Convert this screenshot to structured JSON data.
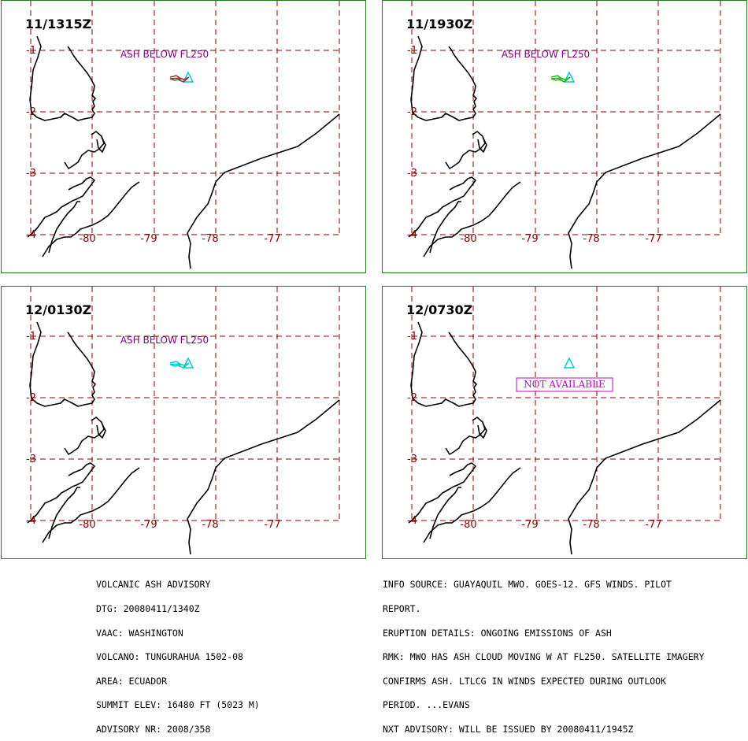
{
  "panels": [
    {
      "time": "11/1315Z",
      "label": "ASH BELOW FL250",
      "plume_color": "#8b3a3a",
      "na": false
    },
    {
      "time": "11/1930Z",
      "label": "ASH BELOW FL250",
      "plume_color": "#22bb22",
      "na": false
    },
    {
      "time": "12/0130Z",
      "label": "ASH BELOW FL250",
      "plume_color": "#00cccc",
      "na": false
    },
    {
      "time": "12/0730Z",
      "label": "",
      "plume_color": "",
      "na": true,
      "na_text": "NOT AVAILABLE"
    }
  ],
  "axis": {
    "lat_labels": [
      "-1",
      "-2",
      "-3",
      "-4"
    ],
    "lon_labels": [
      "-80",
      "-79",
      "-78",
      "-77"
    ]
  },
  "colors": {
    "frame": "#1e7d1e",
    "grid": "#8b0000",
    "coast": "#000000",
    "label": "#800080",
    "volcano": "#00cccc",
    "na_box": "#cc00cc"
  },
  "advisory_left": [
    "VOLCANIC ASH ADVISORY",
    "DTG: 20080411/1340Z",
    "VAAC: WASHINGTON",
    "VOLCANO: TUNGURAHUA 1502-08",
    "AREA: ECUADOR",
    "SUMMIT ELEV: 16480 FT (5023 M)",
    "ADVISORY NR: 2008/358"
  ],
  "advisory_right": [
    "INFO SOURCE: GUAYAQUIL MWO. GOES-12. GFS WINDS. PILOT",
    "REPORT.",
    "ERUPTION DETAILS: ONGOING EMISSIONS OF ASH",
    "RMK: MWO HAS ASH CLOUD MOVING W AT FL250. SATELLITE IMAGERY",
    "CONFIRMS ASH. LTLCG IN WINDS EXPECTED DURING OUTLOOK",
    "PERIOD. ...EVANS",
    "NXT ADVISORY: WILL BE ISSUED BY 20080411/1945Z"
  ]
}
